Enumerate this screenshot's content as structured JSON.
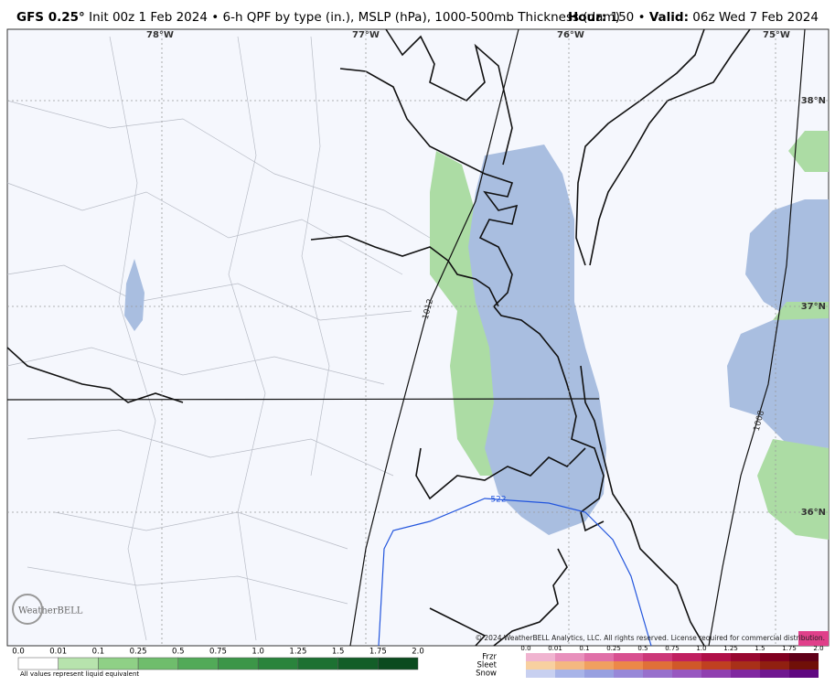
{
  "header": {
    "model": "GFS 0.25°",
    "description": "Init 00z 1 Feb 2024 • 6-h QPF by type (in.), MSLP (hPa), 1000-500mb Thickness (dam)",
    "hour_label": "Hour:",
    "hour": "150",
    "separator": "•",
    "valid_label": "Valid:",
    "valid": "06z Wed 7 Feb 2024"
  },
  "map": {
    "longitude_labels": [
      "78°W",
      "77°W",
      "76°W",
      "75°W"
    ],
    "latitude_labels": [
      "38°N",
      "37°N",
      "36°N"
    ],
    "contour_labels": [
      "1012",
      "1008",
      "522"
    ],
    "logo": "WeatherBELL",
    "copyright": "© 2024 WeatherBELL Analytics, LLC. All rights reserved. License required for commercial distribution."
  },
  "legend": {
    "rain_ticks": [
      "0.0",
      "0.01",
      "0.1",
      "0.25",
      "0.5",
      "0.75",
      "1.0",
      "1.25",
      "1.5",
      "1.75",
      "2.0"
    ],
    "note": "All values represent liquid equivalent",
    "type_labels": [
      "Frzr",
      "Sleet",
      "Snow"
    ],
    "type_ticks": [
      "0.0",
      "0.01",
      "0.1",
      "0.25",
      "0.5",
      "0.75",
      "1.0",
      "1.25",
      "1.5",
      "1.75",
      "2.0"
    ]
  }
}
